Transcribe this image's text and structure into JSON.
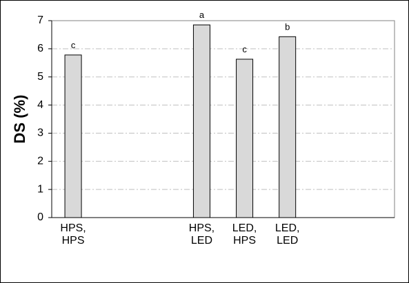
{
  "chart_data": {
    "type": "bar",
    "y_label": "DS (%)",
    "categories": [
      "HPS, HPS",
      null,
      null,
      "HPS, LED",
      "LED, HPS",
      "LED, LED",
      null,
      null
    ],
    "values": [
      5.78,
      null,
      null,
      6.85,
      5.63,
      6.43,
      null,
      null
    ],
    "annotations": [
      "c",
      null,
      null,
      "a",
      "c",
      "b",
      null,
      null
    ],
    "color": "#d9d9d9",
    "ylim": [
      0,
      7
    ],
    "yticks": [
      0,
      1,
      2,
      3,
      4,
      5,
      6,
      7
    ],
    "grid": true
  }
}
